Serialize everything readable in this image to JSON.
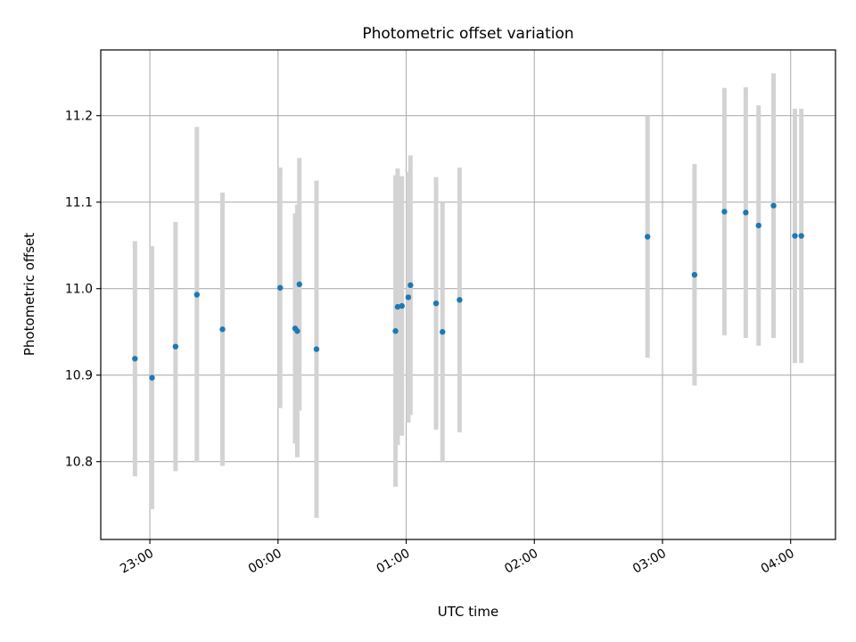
{
  "chart_data": {
    "type": "scatter",
    "title": "Photometric offset variation",
    "xlabel": "UTC time",
    "ylabel": "Photometric offset",
    "xlim": [
      "22:37",
      "04:21"
    ],
    "ylim": [
      10.71,
      11.276
    ],
    "grid": true,
    "x_ticks": [
      "23:00",
      "00:00",
      "01:00",
      "02:00",
      "03:00",
      "04:00"
    ],
    "y_ticks": [
      "10.8",
      "10.9",
      "11.0",
      "11.1",
      "11.2"
    ],
    "colors": {
      "point": "#1f77b4",
      "errorbar": "#d3d3d3",
      "grid": "#b0b0b0"
    },
    "points": [
      {
        "x": "22:53",
        "y": 10.919,
        "err": 0.136
      },
      {
        "x": "23:01",
        "y": 10.897,
        "err": 0.152
      },
      {
        "x": "23:12",
        "y": 10.933,
        "err": 0.144
      },
      {
        "x": "23:22",
        "y": 10.993,
        "err": 0.194
      },
      {
        "x": "23:34",
        "y": 10.953,
        "err": 0.158
      },
      {
        "x": "00:01",
        "y": 11.001,
        "err": 0.139
      },
      {
        "x": "00:08",
        "y": 10.954,
        "err": 0.133
      },
      {
        "x": "00:09",
        "y": 10.951,
        "err": 0.146
      },
      {
        "x": "00:10",
        "y": 11.005,
        "err": 0.146
      },
      {
        "x": "00:18",
        "y": 10.93,
        "err": 0.195
      },
      {
        "x": "00:55",
        "y": 10.951,
        "err": 0.18
      },
      {
        "x": "00:56",
        "y": 10.979,
        "err": 0.16
      },
      {
        "x": "00:58",
        "y": 10.98,
        "err": 0.15
      },
      {
        "x": "01:01",
        "y": 10.99,
        "err": 0.145
      },
      {
        "x": "01:02",
        "y": 11.004,
        "err": 0.15
      },
      {
        "x": "01:14",
        "y": 10.983,
        "err": 0.146
      },
      {
        "x": "01:17",
        "y": 10.95,
        "err": 0.15
      },
      {
        "x": "01:25",
        "y": 10.987,
        "err": 0.153
      },
      {
        "x": "02:53",
        "y": 11.06,
        "err": 0.14
      },
      {
        "x": "03:15",
        "y": 11.016,
        "err": 0.128
      },
      {
        "x": "03:29",
        "y": 11.089,
        "err": 0.143
      },
      {
        "x": "03:39",
        "y": 11.088,
        "err": 0.145
      },
      {
        "x": "03:45",
        "y": 11.073,
        "err": 0.139
      },
      {
        "x": "03:52",
        "y": 11.096,
        "err": 0.153
      },
      {
        "x": "04:02",
        "y": 11.061,
        "err": 0.147
      },
      {
        "x": "04:05",
        "y": 11.061,
        "err": 0.147
      }
    ]
  }
}
